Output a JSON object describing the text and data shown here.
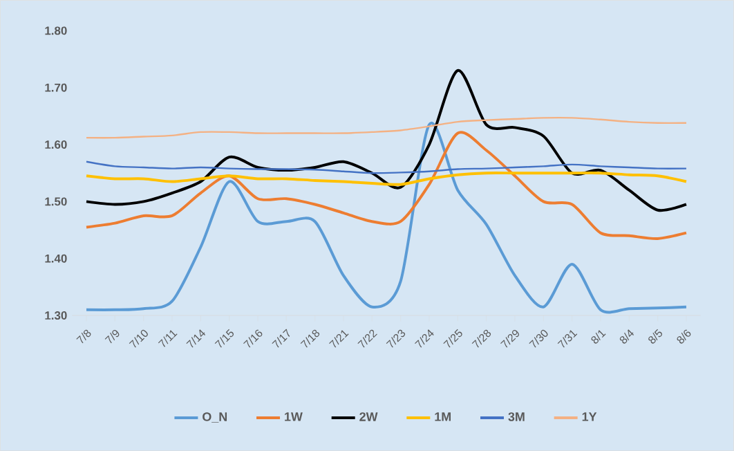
{
  "chart_data": {
    "type": "line",
    "categories": [
      "7/8",
      "7/9",
      "7/10",
      "7/11",
      "7/14",
      "7/15",
      "7/16",
      "7/17",
      "7/18",
      "7/21",
      "7/22",
      "7/23",
      "7/24",
      "7/25",
      "7/28",
      "7/29",
      "7/30",
      "7/31",
      "8/1",
      "8/4",
      "8/5",
      "8/6"
    ],
    "ylim": [
      1.3,
      1.8
    ],
    "yticks": [
      {
        "value": 1.3,
        "label": "1.30"
      },
      {
        "value": 1.4,
        "label": "1.40"
      },
      {
        "value": 1.5,
        "label": "1.50"
      },
      {
        "value": 1.6,
        "label": "1.60"
      },
      {
        "value": 1.7,
        "label": "1.70"
      },
      {
        "value": 1.8,
        "label": "1.80"
      }
    ],
    "grid": false,
    "legend": "bottom",
    "marker": "none",
    "line_style": "solid",
    "series": [
      {
        "name": "O_N",
        "color": "#5b9bd5",
        "values": [
          1.31,
          1.31,
          1.312,
          1.325,
          1.42,
          1.535,
          1.465,
          1.465,
          1.465,
          1.37,
          1.315,
          1.36,
          1.635,
          1.52,
          1.46,
          1.37,
          1.315,
          1.39,
          1.31,
          1.312,
          1.313,
          1.315
        ]
      },
      {
        "name": "1W",
        "color": "#ed7d31",
        "values": [
          1.455,
          1.462,
          1.475,
          1.475,
          1.515,
          1.545,
          1.505,
          1.505,
          1.495,
          1.48,
          1.465,
          1.465,
          1.53,
          1.62,
          1.59,
          1.545,
          1.5,
          1.495,
          1.445,
          1.44,
          1.435,
          1.445
        ]
      },
      {
        "name": "2W",
        "color": "#000000",
        "values": [
          1.5,
          1.495,
          1.5,
          1.515,
          1.535,
          1.578,
          1.56,
          1.555,
          1.56,
          1.57,
          1.55,
          1.525,
          1.6,
          1.73,
          1.635,
          1.63,
          1.615,
          1.55,
          1.555,
          1.52,
          1.485,
          1.495
        ]
      },
      {
        "name": "1M",
        "color": "#ffc000",
        "values": [
          1.545,
          1.54,
          1.54,
          1.535,
          1.54,
          1.545,
          1.54,
          1.54,
          1.537,
          1.535,
          1.532,
          1.53,
          1.54,
          1.547,
          1.55,
          1.55,
          1.55,
          1.55,
          1.55,
          1.547,
          1.545,
          1.535
        ]
      },
      {
        "name": "3M",
        "color": "#4472c4",
        "values": [
          1.57,
          1.562,
          1.56,
          1.558,
          1.56,
          1.558,
          1.557,
          1.557,
          1.556,
          1.553,
          1.55,
          1.551,
          1.553,
          1.557,
          1.558,
          1.56,
          1.562,
          1.565,
          1.562,
          1.56,
          1.558,
          1.558
        ]
      },
      {
        "name": "1Y",
        "color": "#f4b183",
        "values": [
          1.612,
          1.612,
          1.614,
          1.616,
          1.622,
          1.622,
          1.62,
          1.62,
          1.62,
          1.62,
          1.622,
          1.625,
          1.632,
          1.64,
          1.643,
          1.645,
          1.647,
          1.647,
          1.644,
          1.64,
          1.638,
          1.638
        ]
      }
    ]
  }
}
